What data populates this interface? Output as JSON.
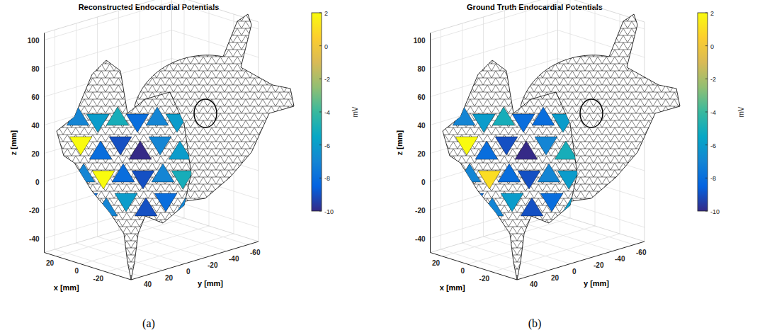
{
  "chart_data": [
    {
      "type": "mesh3d",
      "title": "Reconstructed Endocardial Potentials",
      "label": "(a)",
      "xlabel": "x [mm]",
      "ylabel": "y [mm]",
      "zlabel": "z [mm]",
      "xlim": [
        -40,
        30
      ],
      "ylim": [
        -70,
        50
      ],
      "zlim": [
        -50,
        105
      ],
      "xticks": [
        -20,
        0,
        20
      ],
      "yticks": [
        -60,
        -40,
        -20,
        0,
        20,
        40
      ],
      "zticks": [
        -40,
        -20,
        0,
        20,
        40,
        60,
        80,
        100
      ],
      "grid": true,
      "colorbar": {
        "label": "mV",
        "range": [
          -10,
          2
        ],
        "ticks": [
          -10,
          -8,
          -6,
          -4,
          -2,
          0,
          2
        ]
      },
      "values": [
        -7,
        -6,
        -5,
        -8,
        -7,
        -6,
        2,
        -8,
        -9,
        -10,
        -7,
        -6,
        -7,
        2,
        -8,
        -9,
        -7,
        -5,
        -8,
        -7,
        -6,
        -9,
        -8,
        -7
      ]
    },
    {
      "type": "mesh3d",
      "title": "Ground Truth Endocardial Potentials",
      "label": "(b)",
      "xlabel": "x [mm]",
      "ylabel": "y [mm]",
      "zlabel": "z [mm]",
      "xlim": [
        -40,
        30
      ],
      "ylim": [
        -70,
        50
      ],
      "zlim": [
        -50,
        105
      ],
      "xticks": [
        -20,
        0,
        20
      ],
      "yticks": [
        -60,
        -40,
        -20,
        0,
        20,
        40
      ],
      "zticks": [
        -40,
        -20,
        0,
        20,
        40,
        60,
        80,
        100
      ],
      "grid": true,
      "colorbar": {
        "label": "mV",
        "range": [
          -10,
          2
        ],
        "ticks": [
          -10,
          -8,
          -6,
          -4,
          -2,
          0,
          2
        ]
      },
      "values": [
        -7,
        -6,
        -5,
        -8,
        -8,
        -6,
        2,
        -8,
        -9,
        -10,
        -7,
        -5,
        -7,
        1,
        -8,
        -9,
        -7,
        -6,
        -8,
        -7,
        -6,
        -9,
        -8,
        -6
      ]
    }
  ]
}
